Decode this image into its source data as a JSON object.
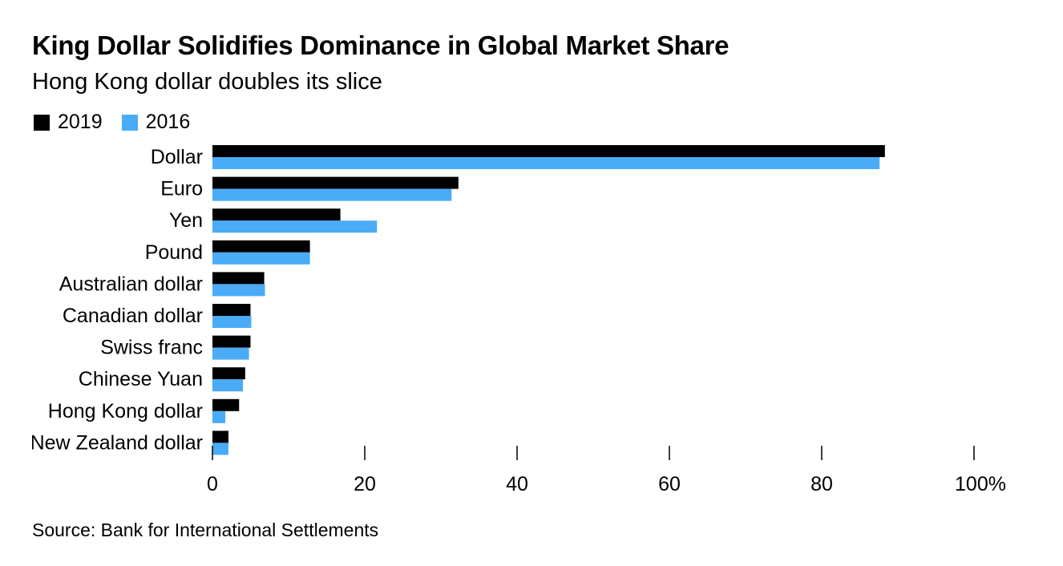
{
  "colors": {
    "series_2019": "#000000",
    "series_2016": "#4aabf7",
    "axis": "#000000"
  },
  "chart_data": {
    "type": "bar",
    "orientation": "horizontal",
    "title": "King Dollar Solidifies Dominance in Global Market Share",
    "subtitle": "Hong Kong dollar doubles its slice",
    "categories": [
      "Dollar",
      "Euro",
      "Yen",
      "Pound",
      "Australian dollar",
      "Canadian dollar",
      "Swiss franc",
      "Chinese Yuan",
      "Hong Kong dollar",
      "New Zealand dollar"
    ],
    "series": [
      {
        "name": "2019",
        "values": [
          88.3,
          32.3,
          16.8,
          12.8,
          6.8,
          5.0,
          5.0,
          4.3,
          3.5,
          2.1
        ]
      },
      {
        "name": "2016",
        "values": [
          87.6,
          31.4,
          21.6,
          12.8,
          6.9,
          5.1,
          4.8,
          4.0,
          1.7,
          2.1
        ]
      }
    ],
    "xticks": [
      "0",
      "20",
      "40",
      "60",
      "80",
      "100%"
    ],
    "xlim": [
      0,
      100
    ],
    "legend": "top-left",
    "grid": false,
    "source": "Source: Bank for International Settlements"
  }
}
